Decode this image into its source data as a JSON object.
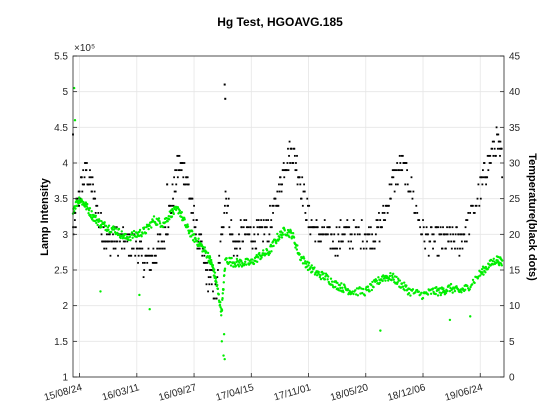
{
  "chart_data": {
    "type": "scatter",
    "title": "Hg Test, HGOAVG.185",
    "xlabel": "",
    "ylabel_left": "Lamp Intensity",
    "ylabel_right": "Temperature(black dots)",
    "yleft_exponent": "×10⁵",
    "ylim_left": [
      1.0,
      5.5
    ],
    "ylim_right": [
      0,
      45
    ],
    "yleft_ticks": [
      "1",
      "1.5",
      "2",
      "2.5",
      "3",
      "3.5",
      "4",
      "4.5",
      "5",
      "5.5"
    ],
    "yright_ticks": [
      "0",
      "5",
      "10",
      "15",
      "20",
      "25",
      "30",
      "35",
      "40",
      "45"
    ],
    "x_ticks": [
      "15/08/24",
      "16/03/11",
      "16/09/27",
      "17/04/15",
      "17/11/01",
      "18/05/20",
      "18/12/06",
      "19/06/24"
    ],
    "xlim": [
      "2015-08-01",
      "2019-09-15"
    ],
    "grid": true,
    "colors": {
      "temperature": "#000000",
      "intensity": "#00ee00",
      "axis": "#262626",
      "grid": "#e6e6e6"
    },
    "series": [
      {
        "axis": "right",
        "color": "#000000",
        "x": [
          "2015-08-01",
          "2015-08-24",
          "2015-09-15",
          "2015-10-10",
          "2015-11-05",
          "2015-12-01",
          "2016-01-01",
          "2016-02-01",
          "2016-03-11",
          "2016-04-10",
          "2016-05-10",
          "2016-06-10",
          "2016-07-10",
          "2016-08-05",
          "2016-09-01",
          "2016-09-27",
          "2016-10-20",
          "2016-11-15",
          "2016-12-15",
          "2017-01-15",
          "2017-02-15",
          "2017-03-15",
          "2017-04-15",
          "2017-05-15",
          "2017-06-15",
          "2017-07-15",
          "2017-08-10",
          "2017-09-05",
          "2017-10-01",
          "2017-11-01",
          "2017-12-01",
          "2018-01-01",
          "2018-02-01",
          "2018-03-01",
          "2018-04-01",
          "2018-05-20",
          "2018-06-20",
          "2018-07-20",
          "2018-08-20",
          "2018-09-20",
          "2018-10-20",
          "2018-12-06",
          "2019-01-10",
          "2019-02-10",
          "2019-03-10",
          "2019-04-10",
          "2019-05-10",
          "2019-06-24",
          "2019-07-20",
          "2019-08-20",
          "2019-09-10"
        ],
        "y": [
          20,
          26,
          29,
          26,
          21,
          19,
          19,
          19,
          18,
          16,
          17,
          19,
          24,
          30,
          28,
          22,
          18,
          14,
          12,
          26,
          18,
          20,
          20,
          20,
          21,
          25,
          30,
          32,
          28,
          22,
          20,
          20,
          19,
          20,
          20,
          20,
          20,
          22,
          27,
          30,
          27,
          20,
          19,
          19,
          19,
          19,
          21,
          26,
          30,
          33,
          30
        ]
      },
      {
        "axis": "left",
        "color": "#00ee00",
        "x": [
          "2015-08-01",
          "2015-08-24",
          "2015-09-15",
          "2015-10-10",
          "2015-11-05",
          "2015-12-01",
          "2016-01-01",
          "2016-02-01",
          "2016-03-11",
          "2016-04-10",
          "2016-05-10",
          "2016-06-10",
          "2016-07-10",
          "2016-08-05",
          "2016-09-01",
          "2016-09-27",
          "2016-10-20",
          "2016-11-15",
          "2016-12-01",
          "2016-12-15",
          "2017-01-01",
          "2017-01-15",
          "2017-02-15",
          "2017-03-15",
          "2017-04-15",
          "2017-05-15",
          "2017-06-15",
          "2017-07-15",
          "2017-08-10",
          "2017-09-05",
          "2017-10-01",
          "2017-11-01",
          "2017-12-01",
          "2018-01-01",
          "2018-02-01",
          "2018-03-01",
          "2018-04-01",
          "2018-05-20",
          "2018-06-20",
          "2018-07-20",
          "2018-08-20",
          "2018-09-20",
          "2018-10-20",
          "2018-12-06",
          "2019-01-10",
          "2019-02-10",
          "2019-03-10",
          "2019-04-10",
          "2019-05-10",
          "2019-06-24",
          "2019-07-20",
          "2019-08-20",
          "2019-09-10"
        ],
        "y": [
          3.35,
          3.5,
          3.4,
          3.25,
          3.15,
          3.1,
          3.05,
          2.95,
          3.0,
          3.05,
          3.2,
          3.15,
          3.3,
          3.35,
          3.1,
          2.95,
          2.85,
          2.7,
          2.55,
          2.3,
          1.9,
          2.65,
          2.6,
          2.6,
          2.6,
          2.7,
          2.75,
          2.95,
          3.05,
          3.0,
          2.7,
          2.55,
          2.45,
          2.4,
          2.3,
          2.25,
          2.2,
          2.2,
          2.3,
          2.4,
          2.4,
          2.3,
          2.2,
          2.15,
          2.2,
          2.2,
          2.25,
          2.2,
          2.25,
          2.45,
          2.55,
          2.65,
          2.6
        ]
      }
    ],
    "outliers_intensity": {
      "x": [
        "2015-08-05",
        "2015-08-08",
        "2015-11-05",
        "2016-03-20",
        "2016-04-25",
        "2016-08-20",
        "2017-01-02",
        "2017-01-08",
        "2017-01-10",
        "2017-01-12",
        "2018-07-10",
        "2019-03-10",
        "2019-05-20"
      ],
      "y": [
        5.05,
        4.6,
        2.2,
        2.15,
        1.95,
        3.2,
        1.5,
        1.3,
        1.6,
        1.25,
        1.65,
        1.8,
        1.85
      ]
    },
    "outliers_temperature": {
      "x": [
        "2015-08-01",
        "2016-06-25",
        "2017-01-12",
        "2017-01-14"
      ],
      "y": [
        34,
        27,
        41,
        39
      ]
    }
  }
}
